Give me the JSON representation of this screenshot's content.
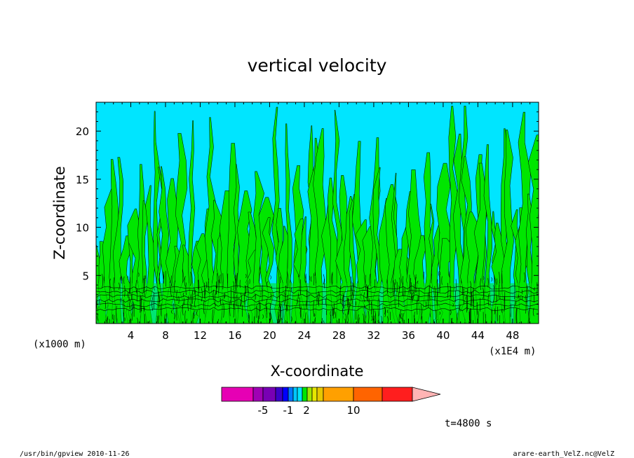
{
  "chart_data": {
    "type": "heatmap",
    "title": "vertical velocity",
    "xlabel": "X-coordinate",
    "ylabel": "Z-coordinate",
    "x_unit_left": "(x1000 m)",
    "x_unit_right": "(x1E4 m)",
    "xlim": [
      0,
      51
    ],
    "ylim": [
      0,
      23
    ],
    "x_ticks": [
      "4",
      "8",
      "12",
      "16",
      "20",
      "24",
      "28",
      "32",
      "36",
      "40",
      "44",
      "48"
    ],
    "x_tick_values": [
      4,
      8,
      12,
      16,
      20,
      24,
      28,
      32,
      36,
      40,
      44,
      48
    ],
    "y_ticks": [
      "5",
      "10",
      "15",
      "20"
    ],
    "y_tick_values": [
      5,
      10,
      15,
      20
    ],
    "field_colors": {
      "background": "#00e5ff",
      "updraft": "#00e600",
      "contour": "#000000"
    },
    "colorbar": {
      "colors": [
        "#e600b4",
        "#a000b4",
        "#7800b4",
        "#3c00c8",
        "#0000ff",
        "#0078ff",
        "#00c8ff",
        "#00e5ff",
        "#00e600",
        "#a0e600",
        "#e6e600",
        "#e6c800",
        "#ffa000",
        "#ff6400",
        "#ff1e1e",
        "#ff7878",
        "#ffb4b4"
      ],
      "labels": [
        "-5",
        "-1",
        "2",
        "10"
      ],
      "label_values": [
        -5,
        -1,
        2,
        10
      ]
    },
    "time_label": "t=4800 s"
  },
  "footer": {
    "left": "/usr/bin/gpview   2010-11-26",
    "right": "arare-earth_VelZ.nc@VelZ"
  }
}
